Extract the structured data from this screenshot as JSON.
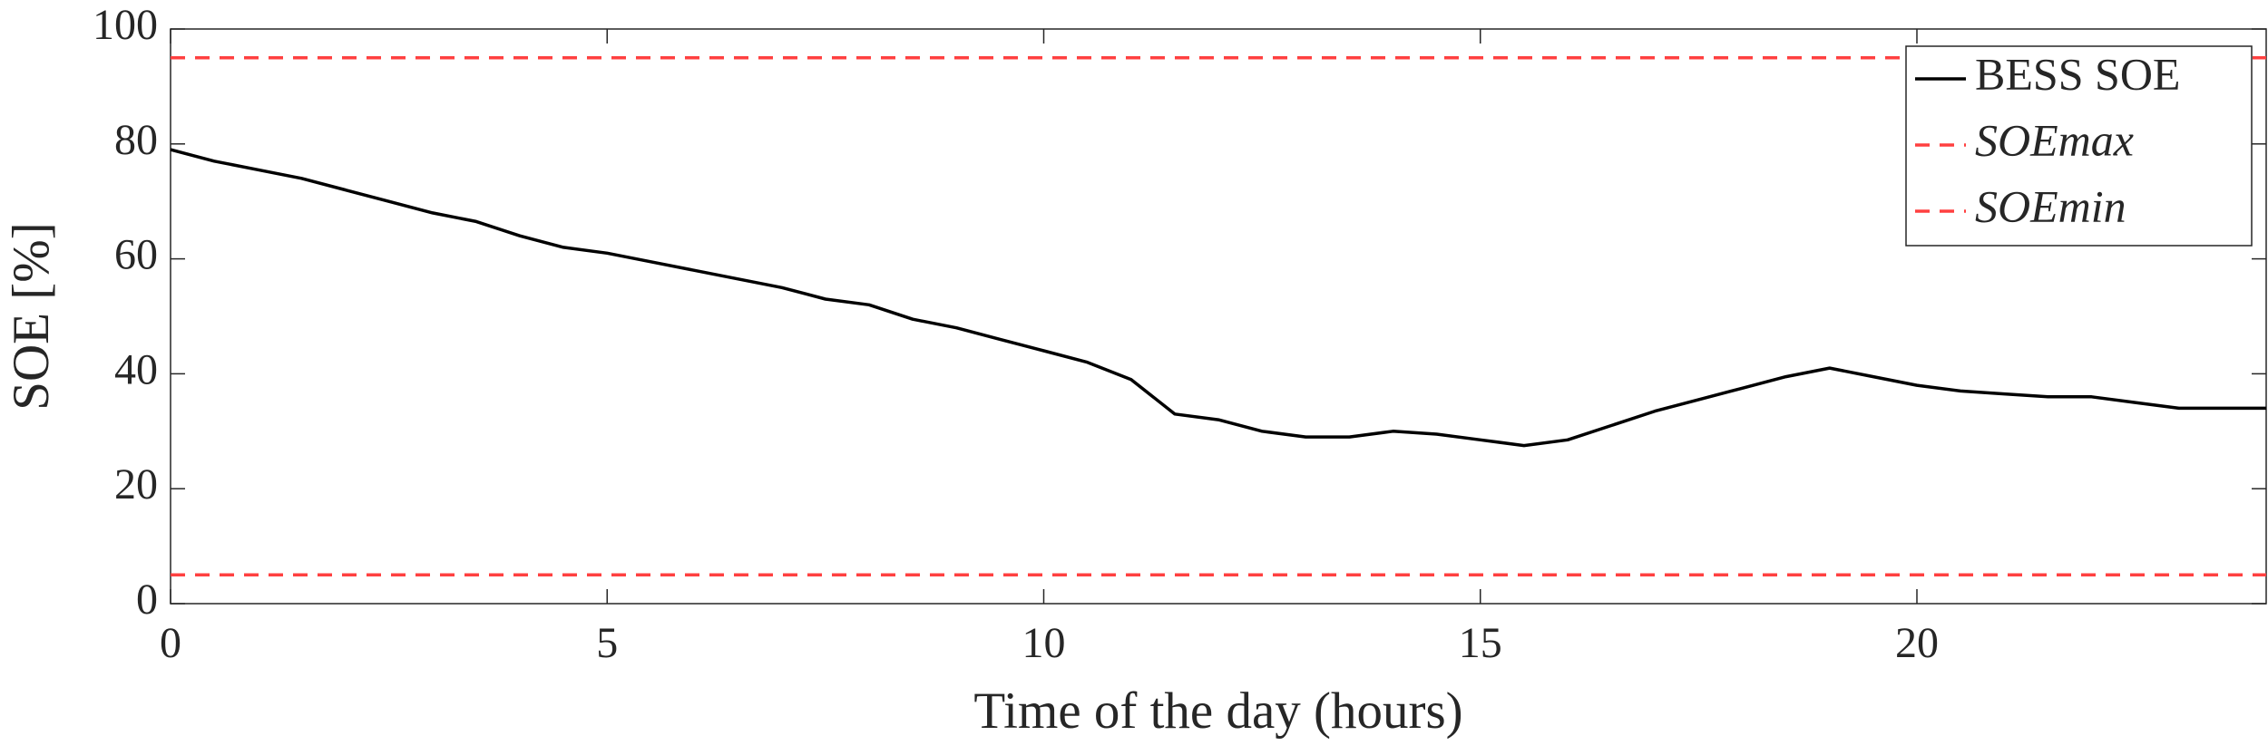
{
  "chart_data": {
    "type": "line",
    "xlabel": "Time of the day (hours)",
    "ylabel": "SOE [%]",
    "x": [
      0,
      0.5,
      1,
      1.5,
      2,
      2.5,
      3,
      3.5,
      4,
      4.5,
      5,
      5.5,
      6,
      6.5,
      7,
      7.5,
      8,
      8.5,
      9,
      9.5,
      10,
      10.5,
      11,
      11.5,
      12,
      12.5,
      13,
      13.5,
      14,
      14.5,
      15,
      15.5,
      16,
      16.5,
      17,
      17.5,
      18,
      18.5,
      19,
      19.5,
      20,
      20.5,
      21,
      21.5,
      22,
      22.5,
      23,
      23.5,
      24
    ],
    "series": [
      {
        "name": "BESS SOE",
        "color": "#000000",
        "values": [
          79,
          77,
          75.5,
          74,
          72,
          70,
          68,
          66.5,
          64,
          62,
          61,
          59.5,
          58,
          56.5,
          55,
          53,
          52,
          49.5,
          48,
          46,
          44,
          42,
          39,
          33,
          32,
          30,
          29,
          29,
          30,
          29.5,
          28.5,
          27.5,
          28.5,
          31,
          33.5,
          35.5,
          37.5,
          39.5,
          41,
          39.5,
          38,
          37,
          36.5,
          36,
          36,
          35,
          34,
          34,
          34
        ]
      }
    ],
    "hlines": [
      {
        "name": "SOEmax",
        "value": 95,
        "color": "#ff4040"
      },
      {
        "name": "SOEmin",
        "value": 5,
        "color": "#ff4040"
      }
    ],
    "xlim": [
      0,
      24
    ],
    "xticks": [
      0,
      5,
      10,
      15,
      20
    ],
    "ylim": [
      0,
      100
    ],
    "yticks": [
      0,
      20,
      40,
      60,
      80,
      100
    ],
    "grid": false,
    "legend": "upper right"
  }
}
